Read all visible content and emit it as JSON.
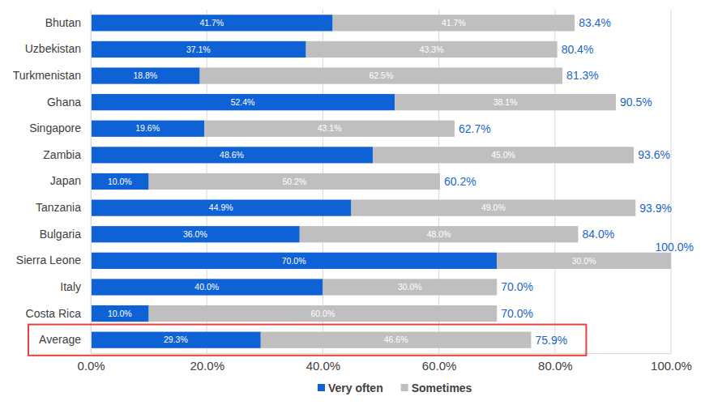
{
  "chart_data": {
    "type": "bar",
    "orientation": "horizontal",
    "stacked": true,
    "data_labels": true,
    "grid": true,
    "legend": "bottom",
    "categories": [
      "Bhutan",
      "Uzbekistan",
      "Turkmenistan",
      "Ghana",
      "Singapore",
      "Zambia",
      "Japan",
      "Tanzania",
      "Bulgaria",
      "Sierra Leone",
      "Italy",
      "Costa Rica",
      "Average"
    ],
    "series": [
      {
        "name": "Very often",
        "color": "#0f62d6",
        "values": [
          41.7,
          37.1,
          18.8,
          52.4,
          19.6,
          48.6,
          10.0,
          44.9,
          36.0,
          70.0,
          40.0,
          10.0,
          29.3
        ],
        "value_labels": [
          "41.7%",
          "37.1%",
          "18.8%",
          "52.4%",
          "19.6%",
          "48.6%",
          "10.0%",
          "44.9%",
          "36.0%",
          "70.0%",
          "40.0%",
          "10.0%",
          "29.3%"
        ]
      },
      {
        "name": "Sometimes",
        "color": "#bfbfbf",
        "values": [
          41.7,
          43.3,
          62.5,
          38.1,
          43.1,
          45.0,
          50.2,
          49.0,
          48.0,
          30.0,
          30.0,
          60.0,
          46.6
        ],
        "value_labels": [
          "41.7%",
          "43.3%",
          "62.5%",
          "38.1%",
          "43.1%",
          "45.0%",
          "50.2%",
          "49.0%",
          "48.0%",
          "30.0%",
          "30.0%",
          "60.0%",
          "46.6%"
        ]
      }
    ],
    "totals": [
      83.4,
      80.4,
      81.3,
      90.5,
      62.7,
      93.6,
      60.2,
      93.9,
      84.0,
      100.0,
      70.0,
      70.0,
      75.9
    ],
    "total_labels": [
      "83.4%",
      "80.4%",
      "81.3%",
      "90.5%",
      "62.7%",
      "93.6%",
      "60.2%",
      "93.9%",
      "84.0%",
      "100.0%",
      "70.0%",
      "70.0%",
      "75.9%"
    ],
    "xlim": [
      0,
      100
    ],
    "xticks": [
      {
        "value": 0,
        "label": "0.0%"
      },
      {
        "value": 20,
        "label": "20.0%"
      },
      {
        "value": 40,
        "label": "40.0%"
      },
      {
        "value": 60,
        "label": "60.0%"
      },
      {
        "value": 80,
        "label": "80.0%"
      },
      {
        "value": 100,
        "label": "100.0%"
      }
    ]
  }
}
